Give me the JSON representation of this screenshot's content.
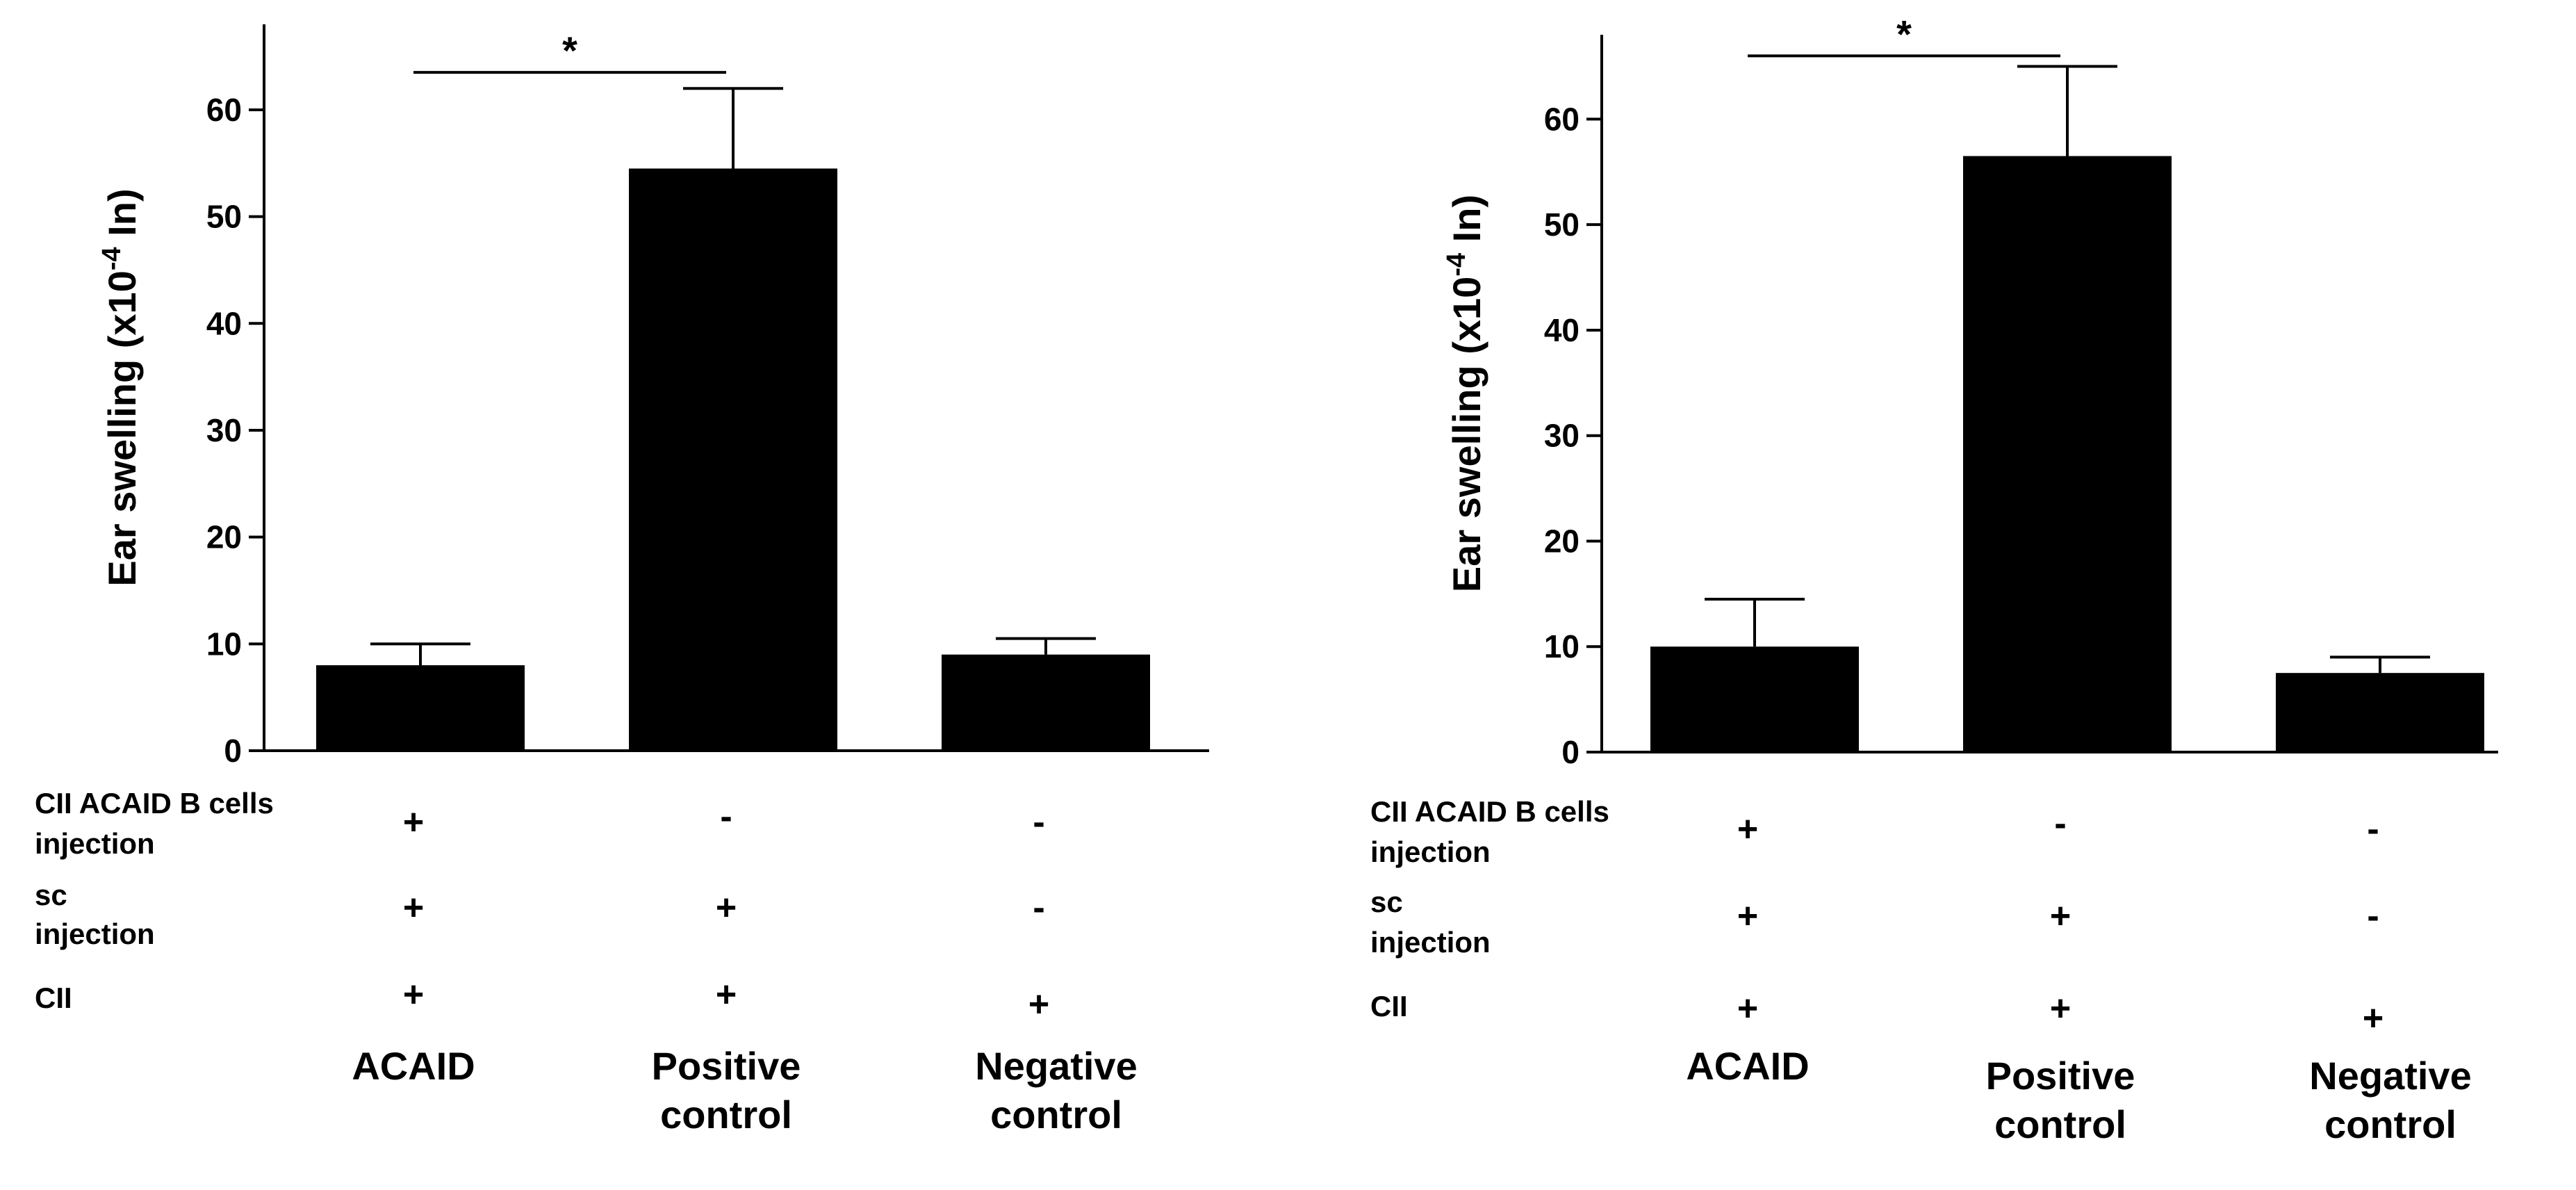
{
  "chart_data": [
    {
      "type": "bar",
      "title": "",
      "ylabel": {
        "main": "Ear swelling (x10",
        "exp": "-4",
        "tail": " In)"
      },
      "xlabel": "",
      "ylim": [
        0,
        68
      ],
      "yticks": [
        0,
        10,
        20,
        30,
        40,
        50,
        60
      ],
      "categories": [
        "ACAID",
        "Positive control",
        "Negative control"
      ],
      "category_lines": [
        [
          "ACAID"
        ],
        [
          "Positive",
          "control"
        ],
        [
          "Negative",
          "control"
        ]
      ],
      "values": [
        8,
        54.5,
        9
      ],
      "errors": [
        2,
        7.5,
        1.5
      ],
      "significance": {
        "from": 0,
        "to": 1,
        "y": 63.5,
        "label": "*"
      },
      "rows": [
        {
          "label_lines": [
            "CII ACAID B cells",
            "injection"
          ],
          "signs": [
            "+",
            "-",
            "-"
          ]
        },
        {
          "label_lines": [
            "sc",
            "injection"
          ],
          "signs": [
            "+",
            "+",
            "-"
          ]
        },
        {
          "label_lines": [
            "CII"
          ],
          "signs": [
            "+",
            "+",
            "+"
          ]
        }
      ]
    },
    {
      "type": "bar",
      "title": "",
      "ylabel": {
        "main": "Ear swelling  (x10",
        "exp": "-4",
        "tail": " In)"
      },
      "xlabel": "",
      "ylim": [
        0,
        68
      ],
      "yticks": [
        0,
        10,
        20,
        30,
        40,
        50,
        60
      ],
      "categories": [
        "ACAID",
        "Positive control",
        "Negative control"
      ],
      "category_lines": [
        [
          "ACAID"
        ],
        [
          "Positive",
          "control"
        ],
        [
          "Negative",
          "control"
        ]
      ],
      "values": [
        10,
        56.5,
        7.5
      ],
      "errors": [
        4.5,
        8.5,
        1.5
      ],
      "significance": {
        "from": 0,
        "to": 1,
        "y": 66,
        "label": "*"
      },
      "rows": [
        {
          "label_lines": [
            "CII ACAID B cells",
            "injection"
          ],
          "signs": [
            "+",
            "-",
            "-"
          ]
        },
        {
          "label_lines": [
            "sc",
            "injection"
          ],
          "signs": [
            "+",
            "+",
            "-"
          ]
        },
        {
          "label_lines": [
            "CII"
          ],
          "signs": [
            "+",
            "+",
            "+"
          ]
        }
      ]
    }
  ],
  "colors": {
    "bar": "#000000",
    "axis": "#000000",
    "background": "#ffffff"
  }
}
